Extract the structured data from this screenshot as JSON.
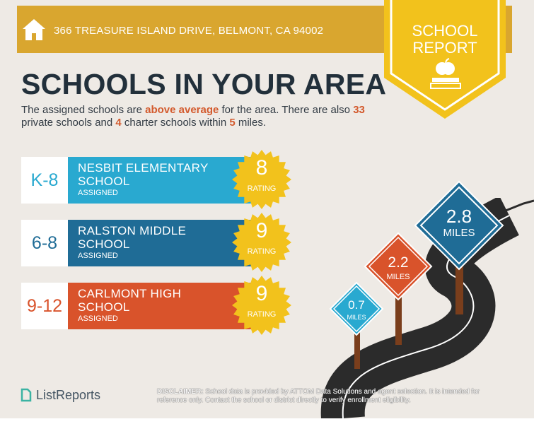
{
  "header": {
    "address": "366 TREASURE ISLAND DRIVE, BELMONT, CA 94002",
    "home_icon": "home-icon"
  },
  "badge": {
    "line1": "SCHOOL",
    "line2": "REPORT",
    "icon": "apple-on-books-icon",
    "color": "#f2c21c"
  },
  "title": "SCHOOLS IN YOUR AREA",
  "summary": {
    "part1": "The assigned schools are ",
    "highlight1": "above average",
    "part2": " for the area. There are also ",
    "private_count": "33",
    "part3": " private schools and ",
    "charter_count": "4",
    "part4": " charter schools within ",
    "miles": "5",
    "part5": " miles."
  },
  "schools": [
    {
      "grades": "K-8",
      "name": "NESBIT ELEMENTARY SCHOOL",
      "status": "ASSIGNED",
      "rating": "8",
      "rating_label": "RATING",
      "color": "#29a9d0"
    },
    {
      "grades": "6-8",
      "name": "RALSTON MIDDLE SCHOOL",
      "status": "ASSIGNED",
      "rating": "9",
      "rating_label": "RATING",
      "color": "#1f6c96"
    },
    {
      "grades": "9-12",
      "name": "CARLMONT HIGH SCHOOL",
      "status": "ASSIGNED",
      "rating": "9",
      "rating_label": "RATING",
      "color": "#d9532b"
    }
  ],
  "signs": [
    {
      "value": "0.7",
      "unit": "MILES",
      "color": "#29a9d0"
    },
    {
      "value": "2.2",
      "unit": "MILES",
      "color": "#d9532b"
    },
    {
      "value": "2.8",
      "unit": "MILES",
      "color": "#1f6c96"
    }
  ],
  "footer": {
    "logo": "ListReports",
    "disclaimer_label": "DISCLAIMER:",
    "disclaimer_text": " School data is provided by ATTOM Data Solutions and agent selection. It is intended for reference only. Contact the school or district directly to verify enrollment eligibility."
  }
}
